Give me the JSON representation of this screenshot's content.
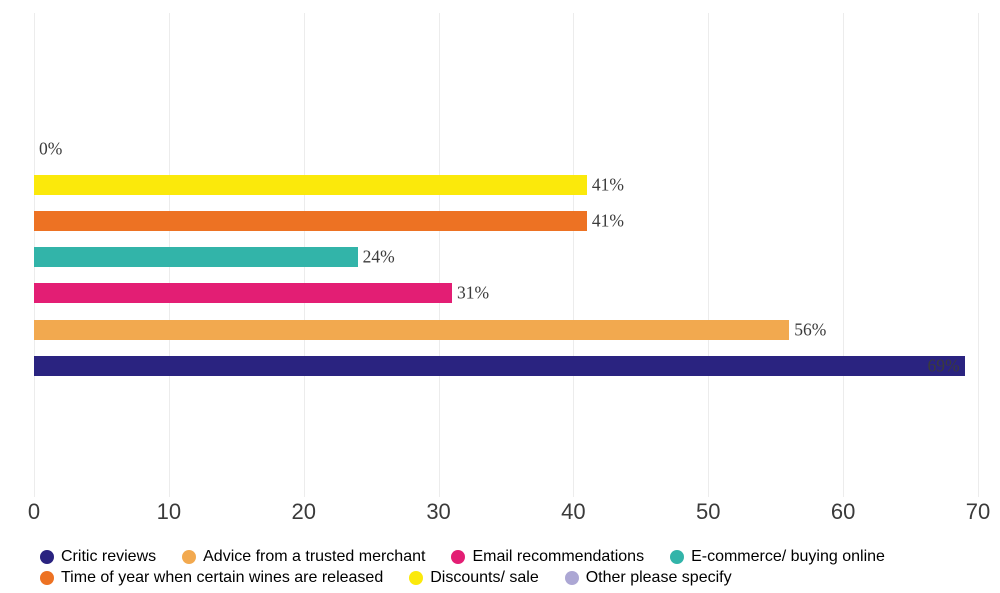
{
  "chart_data": {
    "type": "bar",
    "orientation": "horizontal",
    "title": "",
    "xlabel": "",
    "ylabel": "",
    "xlim": [
      0,
      70
    ],
    "x_ticks": [
      "0",
      "10",
      "20",
      "30",
      "40",
      "50",
      "60",
      "70"
    ],
    "grid": "vertical-gridlines",
    "legend_position": "bottom",
    "series": [
      {
        "name": "Critic reviews",
        "slug": "critic-reviews",
        "color": "#2A2380",
        "value": 69,
        "label": "69%"
      },
      {
        "name": "Advice from a trusted merchant",
        "slug": "advice-from-a-trusted-merchant",
        "color": "#F2A94F",
        "value": 56,
        "label": "56%"
      },
      {
        "name": "Email recommendations",
        "slug": "email-recommendations",
        "color": "#E31E74",
        "value": 31,
        "label": "31%"
      },
      {
        "name": "E-commerce/ buying online",
        "slug": "e-commerce-buying-online",
        "color": "#32B4A9",
        "value": 24,
        "label": "24%"
      },
      {
        "name": "Time of year when certain wines are released",
        "slug": "time-of-year-when-certain-wines-are-released",
        "color": "#ED7223",
        "value": 41,
        "label": "41%"
      },
      {
        "name": "Discounts/ sale",
        "slug": "discounts-sale",
        "color": "#FBE90B",
        "value": 41,
        "label": "41%"
      },
      {
        "name": "Other please specify",
        "slug": "other-please-specify",
        "color": "#ACA7D4",
        "value": 0,
        "label": "0%"
      }
    ],
    "bar_rows_top_to_bottom": [
      "Other please specify",
      "Discounts/ sale",
      "Time of year when certain wines are released",
      "E-commerce/ buying online",
      "Email recommendations",
      "Advice from a trusted merchant",
      "Critic reviews"
    ]
  }
}
